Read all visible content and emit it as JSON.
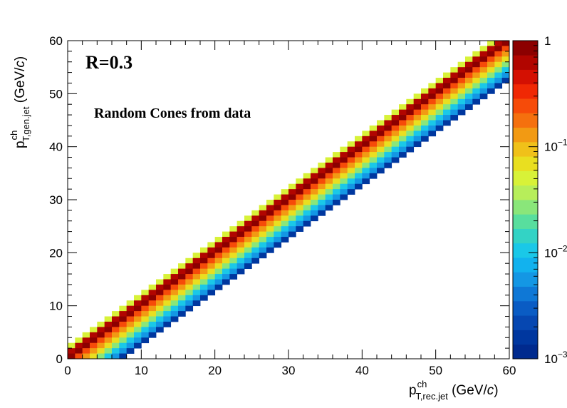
{
  "chart_data": {
    "type": "heatmap",
    "x": {
      "min": 0,
      "max": 60,
      "bin_width": 1,
      "major_ticks": [
        0,
        10,
        20,
        30,
        40,
        50,
        60
      ]
    },
    "y": {
      "min": 0,
      "max": 60,
      "bin_width": 1,
      "major_ticks": [
        0,
        10,
        20,
        30,
        40,
        50,
        60
      ]
    },
    "xlabel": {
      "main": "p",
      "sup": "ch",
      "sub": "T,rec.jet",
      "unit_open": " (GeV/",
      "unit_italic": "c",
      "unit_close": ")"
    },
    "ylabel": {
      "main": "p",
      "sup": "ch",
      "sub": "T,gen.jet",
      "unit_open": " (GeV/",
      "unit_italic": "c",
      "unit_close": ")"
    },
    "z": {
      "scale": "log",
      "min": 0.001,
      "max": 1,
      "tick_labels": [
        {
          "value": 1,
          "base": "1",
          "exp": ""
        },
        {
          "value": 0.1,
          "base": "10",
          "exp": "−1"
        },
        {
          "value": 0.01,
          "base": "10",
          "exp": "−2"
        },
        {
          "value": 0.001,
          "base": "10",
          "exp": "−3"
        }
      ]
    },
    "band": {
      "description_note_free": true,
      "offsets_dy": [
        2,
        1,
        0,
        -1,
        -2,
        -3,
        -4,
        -5,
        -6,
        -7
      ],
      "values": [
        0.05,
        0.7,
        0.95,
        0.25,
        0.12,
        0.06,
        0.03,
        0.012,
        0.005,
        0.0018
      ]
    },
    "annotations": [
      {
        "text": "R=0.3",
        "style": "big"
      },
      {
        "text": "Random Cones from data",
        "style": "mid"
      }
    ]
  },
  "colors": {
    "palette": [
      "#002a8e",
      "#00379f",
      "#0647b1",
      "#0a5cc4",
      "#0f78d6",
      "#1497e4",
      "#12b2ee",
      "#1ac8e8",
      "#33d3c5",
      "#58de9e",
      "#8ae67a",
      "#b7ee5a",
      "#d8f238",
      "#e9df20",
      "#f0c119",
      "#f29a13",
      "#f5700e",
      "#f64b09",
      "#f02804",
      "#d41002",
      "#b10500",
      "#8c0000"
    ]
  }
}
